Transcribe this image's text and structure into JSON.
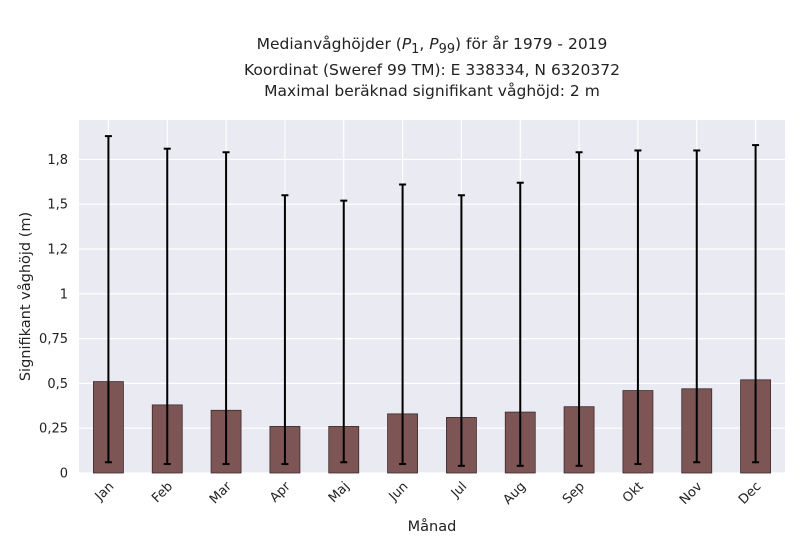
{
  "title": {
    "line1_prefix": "Medianvåghöjder (",
    "p1_main": "P",
    "p1_sub": "1",
    "sep": ", ",
    "p99_main": "P",
    "p99_sub": "99",
    "line1_suffix": ") för år 1979 - 2019",
    "line2": "Koordinat (Sweref 99 TM): E 338334, N 6320372",
    "line3": "Maximal beräknad signifikant våghöjd: 2 m"
  },
  "chart_data": {
    "type": "bar",
    "xlabel": "Månad",
    "ylabel": "Signifikant våghöjd (m)",
    "ylim": [
      0,
      1.97
    ],
    "yticks": [
      0,
      0.25,
      0.5,
      0.75,
      1,
      1.25,
      1.5,
      1.75
    ],
    "ytick_labels": [
      "0",
      "0,25",
      "0,5",
      "0,75",
      "1",
      "1,2",
      "1,5",
      "1,8"
    ],
    "categories": [
      "Jan",
      "Feb",
      "Mar",
      "Apr",
      "Maj",
      "Jun",
      "Jul",
      "Aug",
      "Sep",
      "Okt",
      "Nov",
      "Dec"
    ],
    "values": [
      0.51,
      0.38,
      0.35,
      0.26,
      0.26,
      0.33,
      0.31,
      0.34,
      0.37,
      0.46,
      0.47,
      0.52
    ],
    "p1": [
      0.06,
      0.05,
      0.05,
      0.05,
      0.06,
      0.05,
      0.04,
      0.04,
      0.04,
      0.05,
      0.06,
      0.06
    ],
    "p99": [
      1.88,
      1.81,
      1.79,
      1.55,
      1.52,
      1.61,
      1.55,
      1.62,
      1.79,
      1.8,
      1.8,
      1.83
    ],
    "colors": {
      "bar": "#7d5555",
      "bar_edge": "#3a2a2a",
      "plot_bg": "#eaeaf2",
      "grid": "#ffffff",
      "error": "#000000"
    },
    "grid": true
  }
}
